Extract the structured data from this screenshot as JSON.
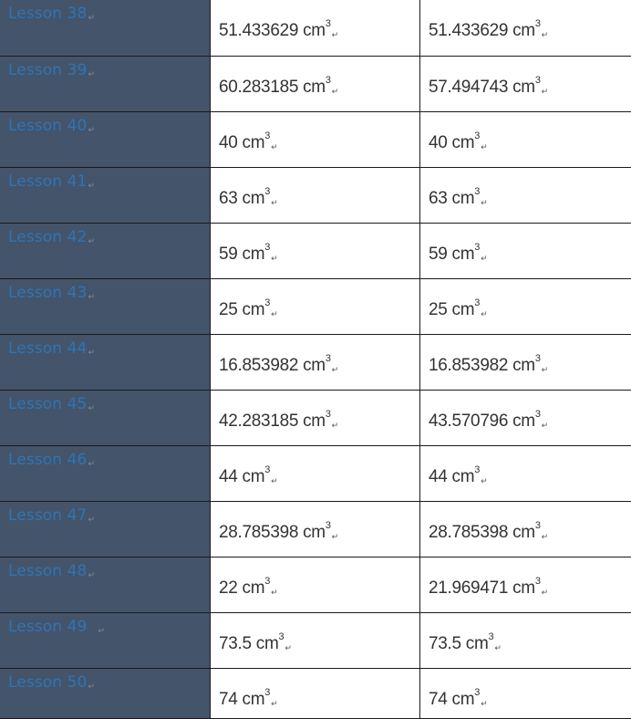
{
  "paragraph_mark": "↵",
  "sup3": "3",
  "rows": [
    {
      "lesson": "Lesson 38",
      "v1": "51.433629 cm",
      "v2": "51.433629 cm"
    },
    {
      "lesson": "Lesson 39",
      "v1": "60.283185 cm",
      "v2": "57.494743 cm"
    },
    {
      "lesson": "Lesson 40",
      "v1": "40 cm",
      "v2": "40 cm"
    },
    {
      "lesson": "Lesson 41",
      "v1": "63 cm",
      "v2": "63 cm"
    },
    {
      "lesson": "Lesson 42",
      "v1": "59 cm",
      "v2": "59 cm"
    },
    {
      "lesson": "Lesson 43",
      "v1": "25 cm",
      "v2": "25 cm"
    },
    {
      "lesson": "Lesson 44",
      "v1": "16.853982 cm",
      "v2": "16.853982 cm"
    },
    {
      "lesson": "Lesson 45",
      "v1": "42.283185 cm",
      "v2": "43.570796 cm"
    },
    {
      "lesson": "Lesson 46",
      "v1": "44 cm",
      "v2": "44 cm"
    },
    {
      "lesson": "Lesson 47",
      "v1": "28.785398 cm",
      "v2": "28.785398 cm"
    },
    {
      "lesson": "Lesson 48",
      "v1": "22 cm",
      "v2": "21.969471 cm"
    },
    {
      "lesson": "Lesson 49",
      "v1": "73.5 cm",
      "v2": "73.5 cm"
    },
    {
      "lesson": "Lesson 50",
      "v1": "74 cm",
      "v2": "74 cm"
    }
  ],
  "colors": {
    "lesson_cell_bg": "#44546a",
    "lesson_text": "#2e74b5",
    "value_text": "#333333",
    "border": "#1a1a1a"
  }
}
